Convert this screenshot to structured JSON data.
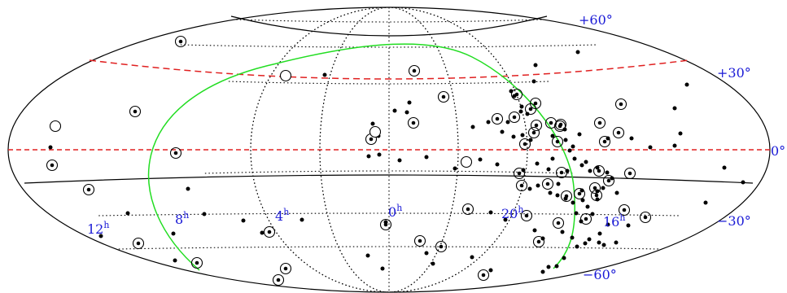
{
  "chart_data": {
    "type": "scatter",
    "projection": "aitoff-hammer",
    "grid": true,
    "colors": {
      "grid": "#000000",
      "outline": "#000000",
      "label": "#1a1ad6",
      "dashed_line": "#e02020",
      "curve": "#22dd22",
      "dot": "#000000"
    },
    "ra_labels": [
      {
        "hour": "12",
        "sup": "h"
      },
      {
        "hour": "8",
        "sup": "h"
      },
      {
        "hour": "4",
        "sup": "h"
      },
      {
        "hour": "0",
        "sup": "h"
      },
      {
        "hour": "20",
        "sup": "h"
      },
      {
        "hour": "16",
        "sup": "h"
      }
    ],
    "dec_labels": [
      "+60°",
      "+30°",
      "0°",
      "−30°",
      "−60°"
    ],
    "dashed_lines": [
      {
        "name": "upper",
        "color": "#e02020"
      },
      {
        "name": "equator",
        "color": "#e02020"
      }
    ],
    "series": [
      {
        "kind": "dot",
        "count": 110
      },
      {
        "kind": "circled-dot",
        "count": 56
      },
      {
        "kind": "open-circle",
        "count": 4
      }
    ]
  }
}
